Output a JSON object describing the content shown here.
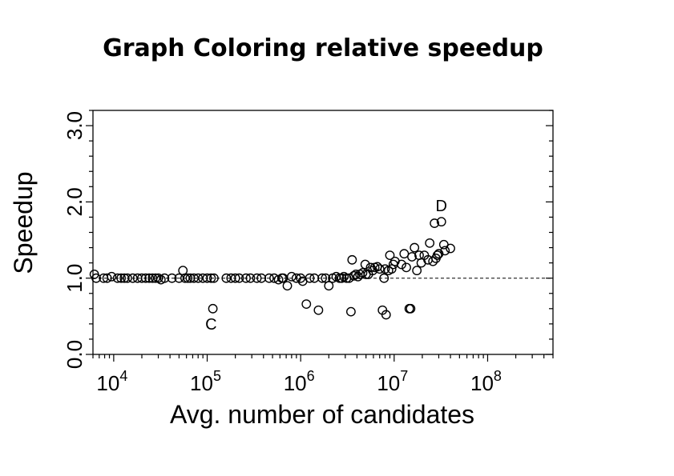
{
  "chart_data": {
    "type": "scatter",
    "title": "Graph Coloring relative speedup",
    "xlabel": "Avg. number of candidates",
    "ylabel": "Speedup",
    "x_scale": "log",
    "xlim": [
      6000,
      500000000
    ],
    "ylim": [
      0,
      3.2
    ],
    "x_ticks": [
      {
        "value": 10000,
        "base": "10",
        "exp": "4"
      },
      {
        "value": 100000,
        "base": "10",
        "exp": "5"
      },
      {
        "value": 1000000,
        "base": "10",
        "exp": "6"
      },
      {
        "value": 10000000,
        "base": "10",
        "exp": "7"
      },
      {
        "value": 100000000,
        "base": "10",
        "exp": "8"
      }
    ],
    "y_ticks": [
      {
        "value": 0,
        "label": "0.0"
      },
      {
        "value": 1,
        "label": "1.0"
      },
      {
        "value": 2,
        "label": "2.0"
      },
      {
        "value": 3,
        "label": "3.0"
      }
    ],
    "y_minor_step": 0.2,
    "reference_line": 1.0,
    "grid": false,
    "annotations": [
      {
        "text": "C",
        "x": 110000,
        "y": 0.4
      },
      {
        "text": "D",
        "x": 32000000,
        "y": 1.95
      }
    ],
    "points": [
      [
        6200,
        1.05
      ],
      [
        6500,
        1.0
      ],
      [
        7800,
        1.0
      ],
      [
        8500,
        1.0
      ],
      [
        9500,
        1.02
      ],
      [
        11000,
        1.0
      ],
      [
        12000,
        1.0
      ],
      [
        13000,
        1.0
      ],
      [
        14000,
        1.0
      ],
      [
        16000,
        1.0
      ],
      [
        18000,
        1.0
      ],
      [
        20000,
        1.0
      ],
      [
        22000,
        1.0
      ],
      [
        24000,
        1.0
      ],
      [
        26000,
        1.0
      ],
      [
        28000,
        1.0
      ],
      [
        30000,
        1.0
      ],
      [
        32000,
        0.98
      ],
      [
        35000,
        1.0
      ],
      [
        42000,
        1.0
      ],
      [
        50000,
        1.0
      ],
      [
        55000,
        1.1
      ],
      [
        58000,
        1.0
      ],
      [
        62000,
        1.0
      ],
      [
        66000,
        1.0
      ],
      [
        72000,
        1.0
      ],
      [
        80000,
        1.0
      ],
      [
        90000,
        1.0
      ],
      [
        100000,
        1.0
      ],
      [
        110000,
        1.0
      ],
      [
        118000,
        1.0
      ],
      [
        115000,
        0.6
      ],
      [
        160000,
        1.0
      ],
      [
        180000,
        1.0
      ],
      [
        200000,
        1.0
      ],
      [
        220000,
        1.0
      ],
      [
        260000,
        1.0
      ],
      [
        290000,
        1.0
      ],
      [
        340000,
        1.0
      ],
      [
        380000,
        1.0
      ],
      [
        460000,
        1.0
      ],
      [
        520000,
        1.0
      ],
      [
        580000,
        0.98
      ],
      [
        630000,
        1.0
      ],
      [
        650000,
        1.0
      ],
      [
        720000,
        0.9
      ],
      [
        800000,
        1.02
      ],
      [
        900000,
        1.0
      ],
      [
        1000000,
        1.0
      ],
      [
        1050000,
        0.96
      ],
      [
        1150000,
        0.66
      ],
      [
        1250000,
        1.0
      ],
      [
        1400000,
        1.0
      ],
      [
        1550000,
        0.58
      ],
      [
        1700000,
        1.0
      ],
      [
        1850000,
        1.0
      ],
      [
        2000000,
        0.9
      ],
      [
        2200000,
        1.0
      ],
      [
        2400000,
        1.02
      ],
      [
        2600000,
        1.0
      ],
      [
        2750000,
        1.0
      ],
      [
        2900000,
        1.02
      ],
      [
        3100000,
        1.0
      ],
      [
        3300000,
        1.0
      ],
      [
        3450000,
        0.56
      ],
      [
        3550000,
        1.24
      ],
      [
        3700000,
        1.03
      ],
      [
        3900000,
        1.05
      ],
      [
        4100000,
        1.02
      ],
      [
        4300000,
        1.05
      ],
      [
        4600000,
        1.07
      ],
      [
        4900000,
        1.18
      ],
      [
        5000000,
        1.05
      ],
      [
        5300000,
        1.05
      ],
      [
        5600000,
        1.14
      ],
      [
        5900000,
        1.1
      ],
      [
        6200000,
        1.14
      ],
      [
        6600000,
        1.15
      ],
      [
        7000000,
        1.12
      ],
      [
        7500000,
        0.58
      ],
      [
        7800000,
        1.0
      ],
      [
        8000000,
        1.12
      ],
      [
        8200000,
        0.52
      ],
      [
        8700000,
        1.1
      ],
      [
        9000000,
        1.3
      ],
      [
        9400000,
        1.12
      ],
      [
        9800000,
        1.18
      ],
      [
        10200000,
        1.22
      ],
      [
        12000000,
        1.18
      ],
      [
        12800000,
        1.32
      ],
      [
        13500000,
        1.14
      ],
      [
        14500000,
        0.6
      ],
      [
        15000000,
        0.6
      ],
      [
        15500000,
        1.28
      ],
      [
        16500000,
        1.4
      ],
      [
        17500000,
        1.1
      ],
      [
        18500000,
        1.3
      ],
      [
        19500000,
        1.2
      ],
      [
        21000000,
        1.3
      ],
      [
        24000000,
        1.46
      ],
      [
        26000000,
        1.22
      ],
      [
        27000000,
        1.72
      ],
      [
        28000000,
        1.26
      ],
      [
        30000000,
        1.32
      ],
      [
        32000000,
        1.74
      ],
      [
        34000000,
        1.44
      ],
      [
        35000000,
        1.36
      ],
      [
        40000000,
        1.39
      ],
      [
        29000000,
        1.3
      ],
      [
        23000000,
        1.24
      ]
    ]
  }
}
